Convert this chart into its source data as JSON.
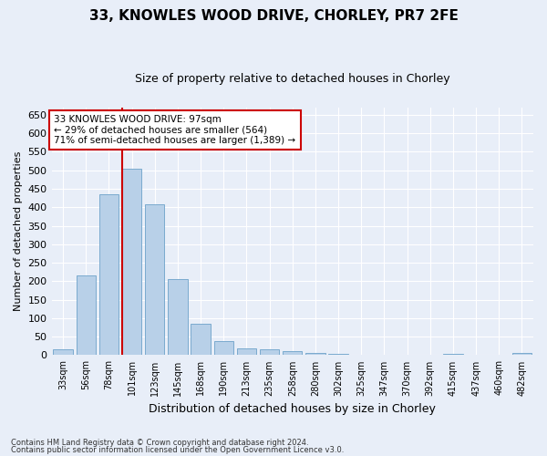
{
  "title1": "33, KNOWLES WOOD DRIVE, CHORLEY, PR7 2FE",
  "title2": "Size of property relative to detached houses in Chorley",
  "xlabel": "Distribution of detached houses by size in Chorley",
  "ylabel": "Number of detached properties",
  "categories": [
    "33sqm",
    "56sqm",
    "78sqm",
    "101sqm",
    "123sqm",
    "145sqm",
    "168sqm",
    "190sqm",
    "213sqm",
    "235sqm",
    "258sqm",
    "280sqm",
    "302sqm",
    "325sqm",
    "347sqm",
    "370sqm",
    "392sqm",
    "415sqm",
    "437sqm",
    "460sqm",
    "482sqm"
  ],
  "values": [
    15,
    215,
    435,
    505,
    407,
    207,
    85,
    38,
    18,
    17,
    10,
    5,
    3,
    1,
    1,
    0,
    0,
    4,
    0,
    0,
    5
  ],
  "bar_color": "#b8d0e8",
  "bar_edge_color": "#7aaace",
  "vline_index": 3,
  "vline_color": "#cc0000",
  "annotation_text": "33 KNOWLES WOOD DRIVE: 97sqm\n← 29% of detached houses are smaller (564)\n71% of semi-detached houses are larger (1,389) →",
  "annotation_box_color": "#ffffff",
  "annotation_box_edge_color": "#cc0000",
  "ylim": [
    0,
    670
  ],
  "yticks": [
    0,
    50,
    100,
    150,
    200,
    250,
    300,
    350,
    400,
    450,
    500,
    550,
    600,
    650
  ],
  "footer1": "Contains HM Land Registry data © Crown copyright and database right 2024.",
  "footer2": "Contains public sector information licensed under the Open Government Licence v3.0.",
  "bg_color": "#e8eef8",
  "plot_bg_color": "#e8eef8",
  "title1_fontsize": 11,
  "title2_fontsize": 9,
  "ylabel_fontsize": 8,
  "xlabel_fontsize": 9
}
